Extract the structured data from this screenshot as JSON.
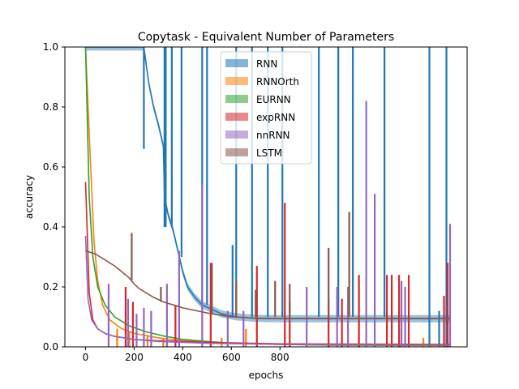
{
  "chart_data": {
    "type": "line",
    "title": "Copytask - Equivalent Number of Parameters",
    "xlabel": "epochs",
    "ylabel": "accuracy",
    "xlim": [
      -85,
      1570
    ],
    "ylim": [
      0.0,
      1.0
    ],
    "xticks": [
      0,
      200,
      400,
      600,
      800
    ],
    "yticks": [
      0.0,
      0.2,
      0.4,
      0.6,
      0.8,
      1.0
    ],
    "grid": false,
    "legend": {
      "placement": "top-center",
      "style": "filled-patch"
    },
    "series": [
      {
        "name": "RNN",
        "color": "#1f77b4",
        "band": true,
        "curve": [
          [
            0,
            1.0
          ],
          [
            240,
            1.0
          ],
          [
            260,
            0.88
          ],
          [
            280,
            0.8
          ],
          [
            300,
            0.74
          ],
          [
            320,
            0.67
          ],
          [
            325,
            0.5
          ],
          [
            340,
            0.44
          ],
          [
            360,
            0.39
          ],
          [
            400,
            0.25
          ],
          [
            420,
            0.2
          ],
          [
            450,
            0.165
          ],
          [
            480,
            0.14
          ],
          [
            520,
            0.125
          ],
          [
            560,
            0.11
          ],
          [
            620,
            0.1
          ],
          [
            700,
            0.095
          ],
          [
            800,
            0.094
          ],
          [
            1000,
            0.094
          ],
          [
            1500,
            0.094
          ]
        ],
        "spikes": [
          [
            240,
            0.66,
            1.0
          ],
          [
            325,
            0.4,
            1.0
          ],
          [
            330,
            0.4,
            1.0
          ],
          [
            355,
            0.4,
            1.0
          ],
          [
            395,
            0.3,
            1.0
          ],
          [
            480,
            0.15,
            1.0
          ],
          [
            500,
            0.14,
            1.0
          ],
          [
            605,
            0.1,
            0.34
          ],
          [
            620,
            0.1,
            1.0
          ],
          [
            685,
            0.1,
            1.0
          ],
          [
            750,
            0.1,
            1.0
          ],
          [
            810,
            0.1,
            1.0
          ],
          [
            960,
            0.1,
            1.0
          ],
          [
            1040,
            0.1,
            1.0
          ],
          [
            1100,
            0.1,
            1.0
          ],
          [
            1230,
            0.1,
            1.0
          ],
          [
            1415,
            0.0,
            1.0
          ],
          [
            1485,
            0.0,
            1.0
          ],
          [
            1455,
            0.0,
            0.12
          ]
        ]
      },
      {
        "name": "RNNOrth",
        "color": "#ff7f0e",
        "curve": [
          [
            0,
            1.0
          ],
          [
            20,
            0.62
          ],
          [
            35,
            0.35
          ],
          [
            50,
            0.22
          ],
          [
            70,
            0.14
          ],
          [
            100,
            0.09
          ],
          [
            150,
            0.06
          ],
          [
            200,
            0.045
          ],
          [
            300,
            0.03
          ],
          [
            400,
            0.02
          ],
          [
            500,
            0.015
          ],
          [
            700,
            0.01
          ],
          [
            1000,
            0.006
          ],
          [
            1500,
            0.004
          ]
        ],
        "spikes": [
          [
            130,
            0.0,
            0.06
          ],
          [
            180,
            0.0,
            0.05
          ],
          [
            255,
            0.0,
            0.04
          ],
          [
            320,
            0.0,
            0.03
          ],
          [
            560,
            0.0,
            0.03
          ],
          [
            660,
            0.0,
            0.06
          ],
          [
            1390,
            0.0,
            0.03
          ]
        ]
      },
      {
        "name": "EURNN",
        "color": "#2ca02c",
        "curve": [
          [
            0,
            1.0
          ],
          [
            15,
            0.5
          ],
          [
            30,
            0.3
          ],
          [
            50,
            0.2
          ],
          [
            80,
            0.14
          ],
          [
            120,
            0.1
          ],
          [
            180,
            0.07
          ],
          [
            250,
            0.05
          ],
          [
            330,
            0.035
          ],
          [
            400,
            0.025
          ],
          [
            500,
            0.018
          ],
          [
            600,
            0.012
          ],
          [
            800,
            0.008
          ],
          [
            1000,
            0.006
          ],
          [
            1500,
            0.005
          ]
        ],
        "spikes": []
      },
      {
        "name": "expRNN",
        "color": "#d62728",
        "curve": [
          [
            0,
            0.55
          ],
          [
            15,
            0.18
          ],
          [
            30,
            0.09
          ],
          [
            50,
            0.06
          ],
          [
            80,
            0.045
          ],
          [
            120,
            0.035
          ],
          [
            200,
            0.025
          ],
          [
            300,
            0.02
          ],
          [
            500,
            0.015
          ],
          [
            800,
            0.01
          ],
          [
            1500,
            0.008
          ]
        ],
        "spikes": [
          [
            165,
            0.0,
            0.2
          ],
          [
            195,
            0.0,
            0.15
          ],
          [
            370,
            0.0,
            0.14
          ],
          [
            515,
            0.0,
            0.28
          ],
          [
            705,
            0.0,
            0.27
          ],
          [
            820,
            0.0,
            0.48
          ],
          [
            840,
            0.0,
            0.15
          ],
          [
            1000,
            0.0,
            0.16
          ],
          [
            1055,
            0.0,
            0.16
          ],
          [
            1125,
            0.0,
            0.24
          ],
          [
            1240,
            0.0,
            0.24
          ],
          [
            1260,
            0.0,
            0.24
          ],
          [
            1290,
            0.0,
            0.24
          ],
          [
            1330,
            0.0,
            0.24
          ],
          [
            1475,
            0.0,
            0.17
          ],
          [
            1490,
            0.0,
            0.28
          ]
        ]
      },
      {
        "name": "nnRNN",
        "color": "#9467bd",
        "curve": [
          [
            0,
            0.37
          ],
          [
            10,
            0.16
          ],
          [
            25,
            0.09
          ],
          [
            50,
            0.06
          ],
          [
            80,
            0.045
          ],
          [
            120,
            0.035
          ],
          [
            200,
            0.025
          ],
          [
            300,
            0.018
          ],
          [
            500,
            0.012
          ],
          [
            800,
            0.008
          ],
          [
            1500,
            0.006
          ]
        ],
        "spikes": [
          [
            95,
            0.0,
            0.21
          ],
          [
            175,
            0.0,
            0.16
          ],
          [
            210,
            0.0,
            0.11
          ],
          [
            240,
            0.0,
            0.13
          ],
          [
            270,
            0.0,
            0.12
          ],
          [
            335,
            0.0,
            0.21
          ],
          [
            385,
            0.0,
            0.32
          ],
          [
            480,
            0.0,
            0.54
          ],
          [
            585,
            0.0,
            0.12
          ],
          [
            650,
            0.0,
            0.12
          ],
          [
            910,
            0.0,
            0.2
          ],
          [
            1035,
            0.0,
            0.2
          ],
          [
            1080,
            0.0,
            0.2
          ],
          [
            1155,
            0.0,
            0.82
          ],
          [
            1190,
            0.0,
            0.51
          ],
          [
            1300,
            0.0,
            0.22
          ],
          [
            1315,
            0.0,
            0.2
          ],
          [
            1500,
            0.0,
            0.41
          ]
        ]
      },
      {
        "name": "LSTM",
        "color": "#8c564b",
        "curve": [
          [
            0,
            0.32
          ],
          [
            20,
            0.315
          ],
          [
            40,
            0.31
          ],
          [
            60,
            0.3
          ],
          [
            80,
            0.29
          ],
          [
            100,
            0.28
          ],
          [
            120,
            0.27
          ],
          [
            150,
            0.25
          ],
          [
            180,
            0.23
          ],
          [
            200,
            0.21
          ],
          [
            220,
            0.195
          ],
          [
            250,
            0.18
          ],
          [
            280,
            0.165
          ],
          [
            320,
            0.15
          ],
          [
            360,
            0.14
          ],
          [
            400,
            0.13
          ],
          [
            460,
            0.12
          ],
          [
            520,
            0.11
          ],
          [
            600,
            0.1
          ],
          [
            700,
            0.096
          ],
          [
            800,
            0.095
          ],
          [
            1000,
            0.095
          ],
          [
            1500,
            0.095
          ]
        ],
        "spikes": [
          [
            190,
            0.22,
            0.38
          ],
          [
            310,
            0.15,
            0.2
          ],
          [
            520,
            0.11,
            0.28
          ],
          [
            620,
            0.1,
            0.22
          ],
          [
            700,
            0.1,
            0.19
          ],
          [
            780,
            0.1,
            0.22
          ],
          [
            840,
            0.1,
            0.21
          ],
          [
            1000,
            0.1,
            0.33
          ],
          [
            1085,
            0.1,
            0.45
          ]
        ]
      }
    ]
  }
}
